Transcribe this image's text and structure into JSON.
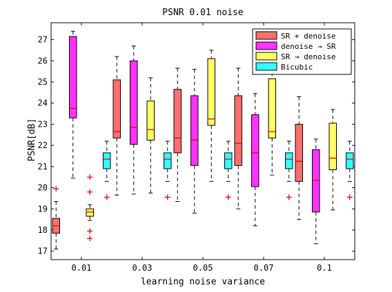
{
  "chart_data": {
    "type": "boxplot",
    "title": "PSNR 0.01 noise",
    "xlabel": "learning noise variance",
    "ylabel": "PSNR[dB]",
    "ylim": [
      16.6,
      27.8
    ],
    "yticks": [
      17,
      18,
      19,
      20,
      21,
      22,
      23,
      24,
      25,
      26,
      27
    ],
    "grid": false,
    "legend_position": "top-right",
    "categories": [
      "0.01",
      "0.03",
      "0.05",
      "0.07",
      "0.1"
    ],
    "series": [
      {
        "name": "SR + denoise",
        "color": "#ff6f6f",
        "boxes": [
          {
            "lower_whisker": 17.1,
            "q1": 17.85,
            "median": 18.2,
            "q3": 18.55,
            "upper_whisker": 19.35,
            "outliers": [
              19.95
            ]
          },
          {
            "lower_whisker": 19.65,
            "q1": 22.35,
            "median": 22.65,
            "q3": 25.1,
            "upper_whisker": 26.2,
            "outliers": []
          },
          {
            "lower_whisker": 19.35,
            "q1": 21.65,
            "median": 22.35,
            "q3": 24.65,
            "upper_whisker": 25.65,
            "outliers": []
          },
          {
            "lower_whisker": 19.0,
            "q1": 21.05,
            "median": 22.1,
            "q3": 24.35,
            "upper_whisker": 25.65,
            "outliers": []
          },
          {
            "lower_whisker": 18.5,
            "q1": 20.3,
            "median": 21.25,
            "q3": 23.0,
            "upper_whisker": 24.3,
            "outliers": []
          }
        ]
      },
      {
        "name": "denoise → SR",
        "color": "#ff33ff",
        "boxes": [
          {
            "lower_whisker": 20.45,
            "q1": 23.3,
            "median": 23.75,
            "q3": 27.15,
            "upper_whisker": 27.4,
            "outliers": []
          },
          {
            "lower_whisker": 19.7,
            "q1": 22.05,
            "median": 22.85,
            "q3": 26.0,
            "upper_whisker": 26.7,
            "outliers": []
          },
          {
            "lower_whisker": 18.8,
            "q1": 21.05,
            "median": 22.25,
            "q3": 24.35,
            "upper_whisker": 25.6,
            "outliers": []
          },
          {
            "lower_whisker": 18.2,
            "q1": 20.05,
            "median": 21.65,
            "q3": 23.45,
            "upper_whisker": 24.45,
            "outliers": []
          },
          {
            "lower_whisker": 17.35,
            "q1": 18.85,
            "median": 20.35,
            "q3": 21.8,
            "upper_whisker": 22.3,
            "outliers": []
          }
        ]
      },
      {
        "name": "SR → denoise",
        "color": "#ffff66",
        "boxes": [
          {
            "lower_whisker": 18.45,
            "q1": 18.65,
            "median": 18.85,
            "q3": 19.0,
            "upper_whisker": 19.2,
            "outliers": [
              17.6,
              17.95,
              19.8,
              20.5
            ]
          },
          {
            "lower_whisker": 19.75,
            "q1": 22.25,
            "median": 22.75,
            "q3": 24.1,
            "upper_whisker": 25.2,
            "outliers": []
          },
          {
            "lower_whisker": 20.3,
            "q1": 22.95,
            "median": 23.25,
            "q3": 26.1,
            "upper_whisker": 26.5,
            "outliers": []
          },
          {
            "lower_whisker": 20.6,
            "q1": 22.35,
            "median": 22.65,
            "q3": 25.15,
            "upper_whisker": 25.45,
            "outliers": []
          },
          {
            "lower_whisker": 18.95,
            "q1": 20.85,
            "median": 21.4,
            "q3": 23.05,
            "upper_whisker": 23.7,
            "outliers": []
          }
        ]
      },
      {
        "name": "Bicubic",
        "color": "#33ffff",
        "boxes": [
          {
            "lower_whisker": 20.3,
            "q1": 20.9,
            "median": 21.35,
            "q3": 21.65,
            "upper_whisker": 22.2,
            "outliers": [
              19.55
            ]
          },
          {
            "lower_whisker": 20.3,
            "q1": 20.9,
            "median": 21.35,
            "q3": 21.65,
            "upper_whisker": 22.2,
            "outliers": [
              19.55
            ]
          },
          {
            "lower_whisker": 20.3,
            "q1": 20.9,
            "median": 21.35,
            "q3": 21.65,
            "upper_whisker": 22.2,
            "outliers": [
              19.55
            ]
          },
          {
            "lower_whisker": 20.3,
            "q1": 20.9,
            "median": 21.35,
            "q3": 21.65,
            "upper_whisker": 22.2,
            "outliers": [
              19.55
            ]
          },
          {
            "lower_whisker": 20.3,
            "q1": 20.9,
            "median": 21.35,
            "q3": 21.65,
            "upper_whisker": 22.2,
            "outliers": [
              19.55
            ]
          }
        ]
      }
    ]
  }
}
